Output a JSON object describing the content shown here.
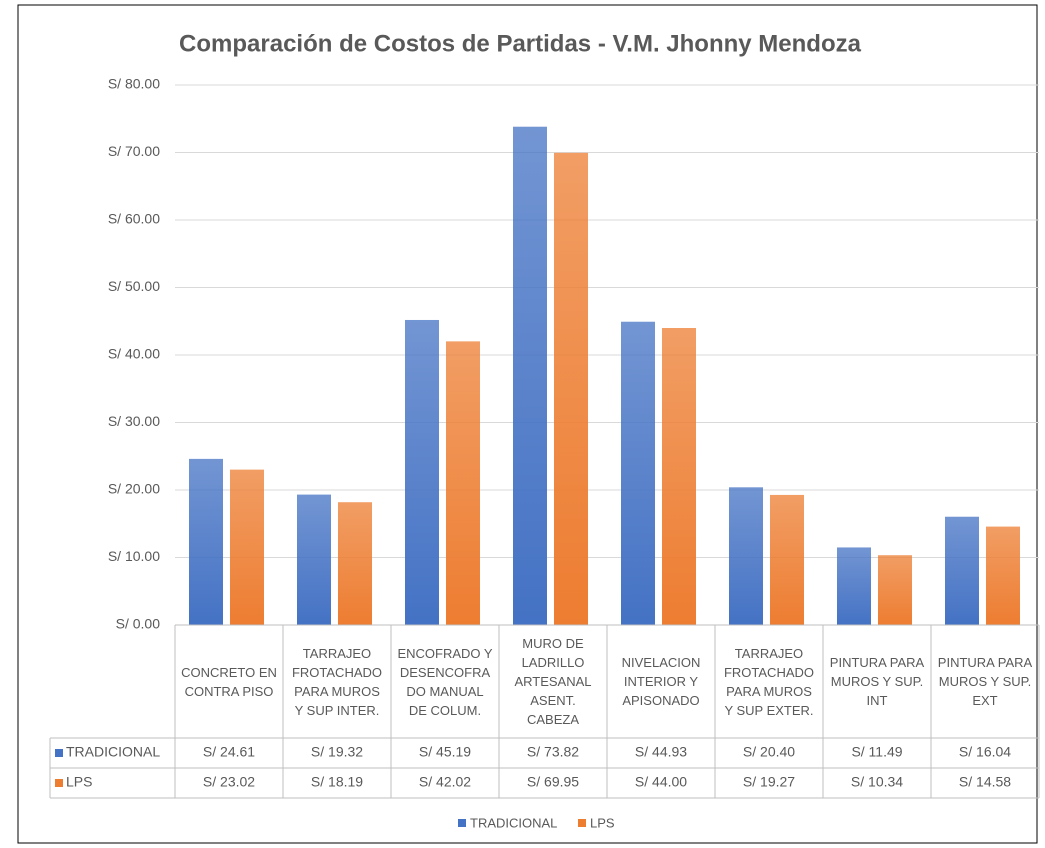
{
  "chart_data": {
    "type": "bar",
    "title": "Comparación de Costos de Partidas - V.M. Jhonny Mendoza",
    "categories": [
      "CONCRETO EN CONTRA PISO",
      "TARRAJEO FROTACHADO PARA MUROS Y SUP INTER.",
      "ENCOFRADO Y DESENCOFRADO MANUAL DE COLUM.",
      "MURO DE LADRILLO ARTESANAL ASENT. CABEZA",
      "NIVELACION INTERIOR Y APISONADO",
      "TARRAJEO FROTACHADO PARA MUROS Y SUP EXTER.",
      "PINTURA PARA MUROS Y SUP. INT",
      "PINTURA PARA MUROS Y SUP. EXT"
    ],
    "series": [
      {
        "name": "TRADICIONAL",
        "color": "#4472c4",
        "values": [
          24.61,
          19.32,
          45.19,
          73.82,
          44.93,
          20.4,
          11.49,
          16.04
        ],
        "value_labels": [
          "S/ 24.61",
          "S/ 19.32",
          "S/ 45.19",
          "S/ 73.82",
          "S/ 44.93",
          "S/ 20.40",
          "S/ 11.49",
          "S/ 16.04"
        ]
      },
      {
        "name": "LPS",
        "color": "#ed7d31",
        "values": [
          23.02,
          18.19,
          42.02,
          69.95,
          44.0,
          19.27,
          10.34,
          14.58
        ],
        "value_labels": [
          "S/ 23.02",
          "S/ 18.19",
          "S/ 42.02",
          "S/ 69.95",
          "S/ 44.00",
          "S/ 19.27",
          "S/ 10.34",
          "S/ 14.58"
        ]
      }
    ],
    "ylim": [
      0,
      80
    ],
    "yticks": [
      {
        "value": 0,
        "label": "S/ 0.00"
      },
      {
        "value": 10,
        "label": "S/ 10.00"
      },
      {
        "value": 20,
        "label": "S/ 20.00"
      },
      {
        "value": 30,
        "label": "S/ 30.00"
      },
      {
        "value": 40,
        "label": "S/ 40.00"
      },
      {
        "value": 50,
        "label": "S/ 50.00"
      },
      {
        "value": 60,
        "label": "S/ 60.00"
      },
      {
        "value": 70,
        "label": "S/ 70.00"
      },
      {
        "value": 80,
        "label": "S/ 80.00"
      }
    ],
    "grid": true,
    "legend": "bottom"
  }
}
